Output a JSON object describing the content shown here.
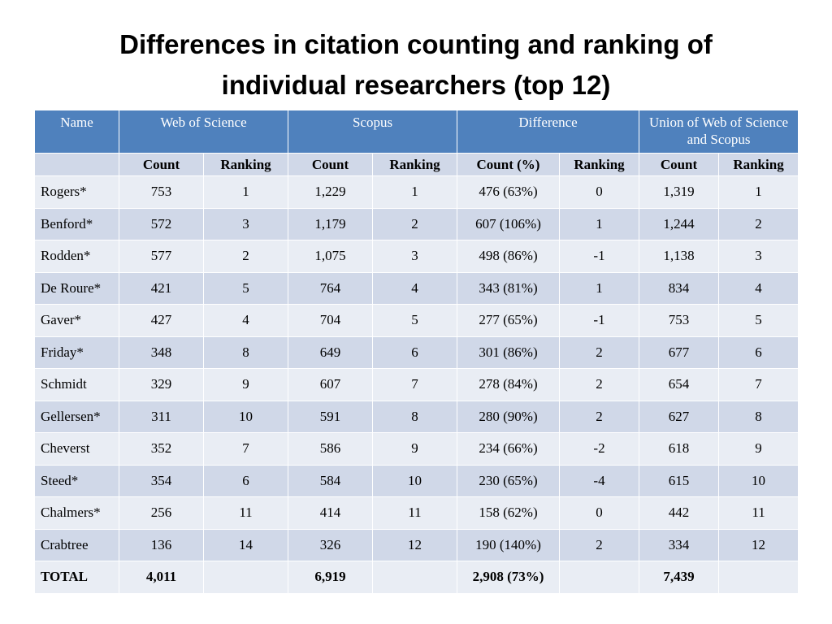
{
  "title": {
    "line1": "Differences in citation counting and ranking of",
    "line2": "individual researchers (top 12)"
  },
  "table": {
    "header": {
      "name": "Name",
      "wos": "Web of Science",
      "scopus": "Scopus",
      "difference": "Difference",
      "union": "Union of Web of Science and Scopus"
    },
    "subheader": [
      "",
      "Count",
      "Ranking",
      "Count",
      "Ranking",
      "Count (%)",
      "Ranking",
      "Count",
      "Ranking"
    ],
    "rows": [
      [
        "Rogers*",
        "753",
        "1",
        "1,229",
        "1",
        "476 (63%)",
        "0",
        "1,319",
        "1"
      ],
      [
        "Benford*",
        "572",
        "3",
        "1,179",
        "2",
        "607 (106%)",
        "1",
        "1,244",
        "2"
      ],
      [
        "Rodden*",
        "577",
        "2",
        "1,075",
        "3",
        "498 (86%)",
        "-1",
        "1,138",
        "3"
      ],
      [
        "De Roure*",
        "421",
        "5",
        "764",
        "4",
        "343 (81%)",
        "1",
        "834",
        "4"
      ],
      [
        "Gaver*",
        "427",
        "4",
        "704",
        "5",
        "277 (65%)",
        "-1",
        "753",
        "5"
      ],
      [
        "Friday*",
        "348",
        "8",
        "649",
        "6",
        "301 (86%)",
        "2",
        "677",
        "6"
      ],
      [
        "Schmidt",
        "329",
        "9",
        "607",
        "7",
        "278 (84%)",
        "2",
        "654",
        "7"
      ],
      [
        "Gellersen*",
        "311",
        "10",
        "591",
        "8",
        "280 (90%)",
        "2",
        "627",
        "8"
      ],
      [
        "Cheverst",
        "352",
        "7",
        "586",
        "9",
        "234 (66%)",
        "-2",
        "618",
        "9"
      ],
      [
        "Steed*",
        "354",
        "6",
        "584",
        "10",
        "230 (65%)",
        "-4",
        "615",
        "10"
      ],
      [
        "Chalmers*",
        "256",
        "11",
        "414",
        "11",
        "158 (62%)",
        "0",
        "442",
        "11"
      ],
      [
        "Crabtree",
        "136",
        "14",
        "326",
        "12",
        "190 (140%)",
        "2",
        "334",
        "12"
      ],
      [
        "TOTAL",
        "4,011",
        "",
        "6,919",
        "",
        "2,908 (73%)",
        "",
        "7,439",
        ""
      ]
    ]
  },
  "colors": {
    "header_bg": "#4f81bd",
    "row_dark": "#d0d8e8",
    "row_light": "#e9edf4"
  }
}
